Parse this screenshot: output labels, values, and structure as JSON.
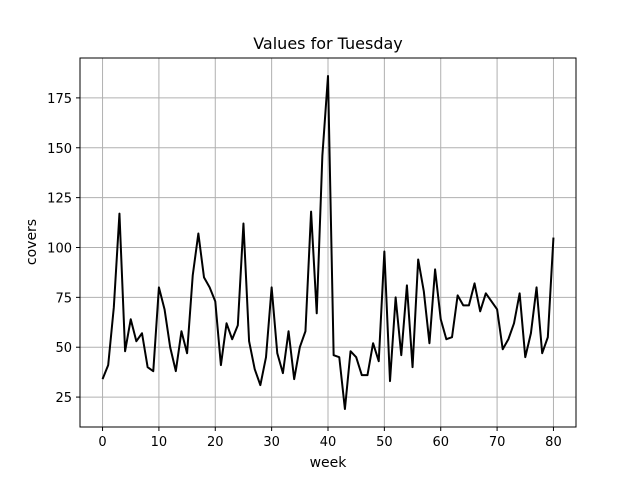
{
  "chart_data": {
    "type": "line",
    "title": "Values for Tuesday",
    "xlabel": "week",
    "ylabel": "covers",
    "xlim": [
      -4,
      84
    ],
    "ylim": [
      10,
      195
    ],
    "xticks": [
      0,
      10,
      20,
      30,
      40,
      50,
      60,
      70,
      80
    ],
    "yticks": [
      25,
      50,
      75,
      100,
      125,
      150,
      175
    ],
    "grid": true,
    "series": [
      {
        "color": "#000000",
        "x": [
          0,
          1,
          2,
          3,
          4,
          5,
          6,
          7,
          8,
          9,
          10,
          11,
          12,
          13,
          14,
          15,
          16,
          17,
          18,
          19,
          20,
          21,
          22,
          23,
          24,
          25,
          26,
          27,
          28,
          29,
          30,
          31,
          32,
          33,
          34,
          35,
          36,
          37,
          38,
          39,
          40,
          41,
          42,
          43,
          44,
          45,
          46,
          47,
          48,
          49,
          50,
          51,
          52,
          53,
          54,
          55,
          56,
          57,
          58,
          59,
          60,
          61,
          62,
          63,
          64,
          65,
          66,
          67,
          68,
          69,
          70,
          71,
          72,
          73,
          74,
          75,
          76,
          77,
          78,
          79,
          80
        ],
        "values": [
          34,
          41,
          70,
          117,
          48,
          64,
          53,
          57,
          40,
          38,
          80,
          69,
          50,
          38,
          58,
          47,
          86,
          107,
          85,
          80,
          73,
          41,
          62,
          54,
          61,
          112,
          53,
          39,
          31,
          45,
          80,
          47,
          37,
          58,
          34,
          50,
          58,
          118,
          67,
          146,
          186,
          46,
          45,
          19,
          48,
          45,
          36,
          36,
          52,
          43,
          98,
          33,
          75,
          46,
          81,
          40,
          94,
          78,
          52,
          89,
          64,
          54,
          55,
          76,
          71,
          71,
          82,
          68,
          77,
          73,
          69,
          49,
          54,
          62,
          77,
          45,
          57,
          80,
          47,
          55,
          105
        ]
      }
    ]
  }
}
